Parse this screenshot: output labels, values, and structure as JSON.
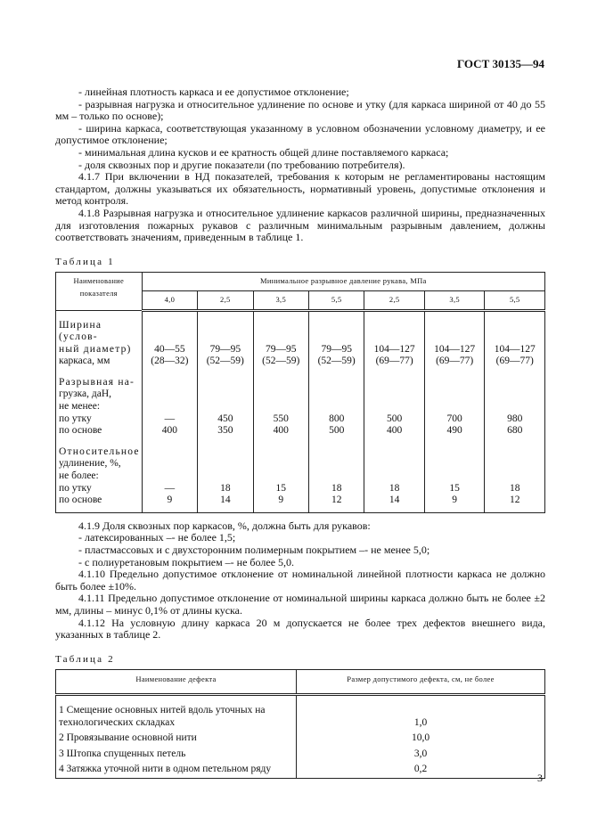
{
  "header": {
    "doc_id": "ГОСТ 30135—94"
  },
  "intro": [
    "- линейная плотность каркаса и ее допустимое отклонение;",
    "- разрывная нагрузка и относительное удлинение по основе и утку (для каркаса шириной от 40 до 55 мм  –  только по основе);",
    "- ширина каркаса, соответствующая указанному в условном обозначении условному диаметру, и ее допустимое отклонение;",
    "- минимальная длина кусков и ее кратность общей длине поставляемого каркаса;",
    "- доля сквозных пор и другие показатели (по требованию потребителя).",
    "4.1.7 При включении в НД показателей, требования к которым не регламентированы настоящим стандартом, должны указываться их обязательность, нормативный уровень, допустимые отклонения и метод контроля.",
    "4.1.8 Разрывная нагрузка и относительное удлинение каркасов различной ширины, предназначенных для изготовления пожарных рукавов с различным минимальным разрывным давлением, должны соответствовать значениям, приведенным в таблице 1."
  ],
  "table1": {
    "caption": "Таблица 1",
    "col0_header": "Наименование показателя",
    "group_header": "Минимальное разрывное давление рукава, МПа",
    "pressures": [
      "4,0",
      "2,5",
      "3,5",
      "5,5",
      "2,5",
      "3,5",
      "5,5"
    ],
    "width": {
      "label": [
        "Ширина (услов-",
        "ный диаметр)",
        "каркаса, мм"
      ],
      "values": [
        "40—55",
        "79—95",
        "79—95",
        "79—95",
        "104—127",
        "104—127",
        "104—127"
      ],
      "values2": [
        "(28—32)",
        "(52—59)",
        "(52—59)",
        "(52—59)",
        "(69—77)",
        "(69—77)",
        "(69—77)"
      ]
    },
    "load": {
      "label": [
        "Разрывная на-",
        "грузка, даН,",
        "не менее:",
        "по утку",
        "по основе"
      ],
      "weft": [
        "—",
        "450",
        "550",
        "800",
        "500",
        "700",
        "980"
      ],
      "warp": [
        "400",
        "350",
        "400",
        "500",
        "400",
        "490",
        "680"
      ]
    },
    "elong": {
      "label": [
        "Относительное",
        "удлинение, %,",
        "не более:",
        "по утку",
        "по основе"
      ],
      "weft": [
        "—",
        "18",
        "15",
        "18",
        "18",
        "15",
        "18"
      ],
      "warp": [
        "9",
        "14",
        "9",
        "12",
        "14",
        "9",
        "12"
      ]
    }
  },
  "middle": [
    "4.1.9 Доля сквозных пор каркасов, %, должна быть для рукавов:",
    "- латексированных –- не более 1,5;",
    "- пластмассовых и с двухсторонним полимерным покрытием –- не менее 5,0;",
    "- с полиуретановым покрытием –- не более 5,0.",
    "4.1.10 Предельно допустимое отклонение от номинальной линейной плотности каркаса не должно быть более ±10%.",
    "4.1.11 Предельно допустимое отклонение от номинальной ширины каркаса должно быть не более ±2 мм, длины  –  минус 0,1% от длины куска.",
    "4.1.12 На условную длину каркаса 20 м допускается не более трех дефектов внешнего вида, указанных в таблице 2."
  ],
  "table2": {
    "caption": "Таблица 2",
    "headers": [
      "Наименование дефекта",
      "Размер допустимого дефекта, см, не более"
    ],
    "rows": [
      {
        "name": "1 Смещение основных нитей вдоль уточных на технологических складках",
        "value": "1,0"
      },
      {
        "name": "2 Провязывание основной нити",
        "value": "10,0"
      },
      {
        "name": "3 Штопка спущенных петель",
        "value": "3,0"
      },
      {
        "name": "4 Затяжка уточной нити в одном петельном ряду",
        "value": "0,2"
      }
    ]
  },
  "page_number": "3"
}
